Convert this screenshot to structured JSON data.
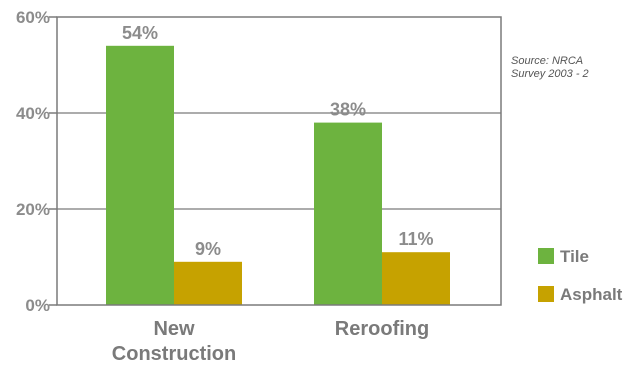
{
  "chart_data": {
    "type": "bar",
    "categories": [
      "New Construction",
      "Reroofing"
    ],
    "category_lines": [
      [
        "New",
        "Construction"
      ],
      [
        "Reroofing"
      ]
    ],
    "series": [
      {
        "name": "Tile",
        "values": [
          54,
          38
        ],
        "labels": [
          "54%",
          "38%"
        ],
        "color": "#6db33f"
      },
      {
        "name": "Asphalt",
        "values": [
          9,
          11
        ],
        "labels": [
          "9%",
          "11%"
        ],
        "color": "#c6a200"
      }
    ],
    "ylim": [
      0,
      60
    ],
    "yticks": [
      0,
      20,
      40,
      60
    ],
    "ytick_labels": [
      "0%",
      "20%",
      "40%",
      "60%"
    ],
    "grid": true,
    "legend_position": "bottom-right",
    "source_lines": [
      "Source: NRCA",
      "Survey 2003 - 2"
    ],
    "title": "",
    "xlabel": "",
    "ylabel": ""
  }
}
